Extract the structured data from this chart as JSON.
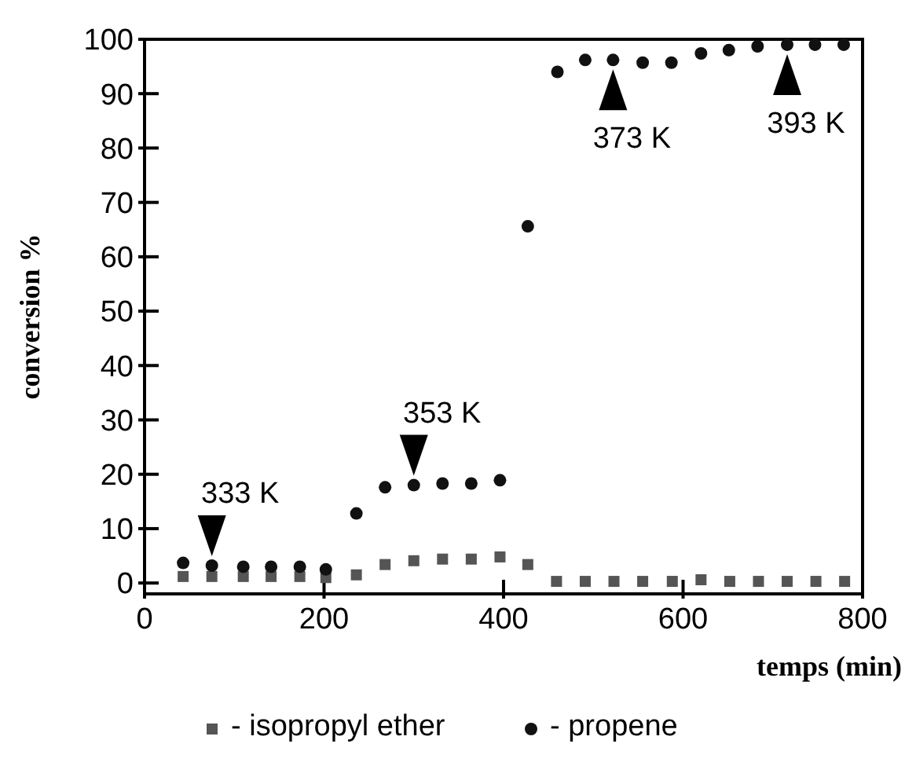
{
  "chart_data": {
    "type": "scatter",
    "xlabel": "temps (min)",
    "ylabel": "conversion %",
    "xlim": [
      0,
      800
    ],
    "ylim": [
      -2,
      100
    ],
    "xticks": [
      0,
      200,
      400,
      600,
      800
    ],
    "yticks": [
      0,
      10,
      20,
      30,
      40,
      50,
      60,
      70,
      80,
      90,
      100
    ],
    "grid": false,
    "legend": "bottom",
    "series": [
      {
        "name": "- isopropyl ether",
        "color": "#555555",
        "marker": "square",
        "x": [
          43,
          75,
          110,
          141,
          173,
          202,
          236,
          268,
          300,
          332,
          364,
          396,
          427,
          459,
          491,
          523,
          555,
          588,
          620,
          652,
          684,
          716,
          748,
          780
        ],
        "values": [
          1.2,
          1.2,
          1.2,
          1.2,
          1.2,
          1.0,
          1.5,
          3.4,
          4.1,
          4.4,
          4.4,
          4.8,
          3.4,
          0.3,
          0.3,
          0.3,
          0.3,
          0.3,
          0.6,
          0.3,
          0.3,
          0.3,
          0.3,
          0.3
        ]
      },
      {
        "name": "- propene",
        "color": "#111111",
        "marker": "circle",
        "x": [
          43,
          75,
          110,
          141,
          173,
          202,
          236,
          268,
          300,
          332,
          364,
          396,
          427,
          460,
          491,
          522,
          555,
          587,
          620,
          651,
          683,
          716,
          747,
          779
        ],
        "values": [
          3.7,
          3.2,
          3,
          3,
          3,
          2.5,
          12.8,
          17.6,
          18,
          18.3,
          18.3,
          18.9,
          65.6,
          94,
          96.2,
          96.2,
          95.7,
          95.7,
          97.4,
          98,
          98.7,
          99,
          99,
          99
        ]
      }
    ],
    "annotations": [
      {
        "text": "333 K",
        "x": 75,
        "y": 3.2
      },
      {
        "text": "353 K",
        "x": 300,
        "y": 18
      },
      {
        "text": "373 K",
        "x": 522,
        "y": 96.2
      },
      {
        "text": "393 K",
        "x": 716,
        "y": 99
      }
    ]
  }
}
